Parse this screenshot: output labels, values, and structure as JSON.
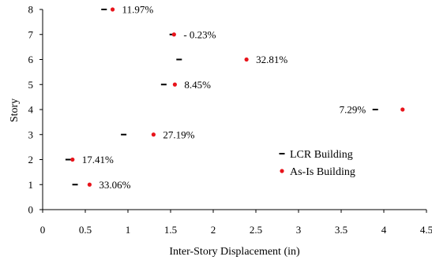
{
  "chart_data": {
    "type": "scatter",
    "title": "",
    "xlabel": "Inter-Story Displacement (in)",
    "ylabel": "Story",
    "xlim": [
      0,
      4.5
    ],
    "ylim": [
      0,
      8
    ],
    "x_ticks": [
      0,
      0.5,
      1,
      1.5,
      2,
      2.5,
      3,
      3.5,
      4,
      4.5
    ],
    "x_tick_labels": [
      "0",
      "0.5",
      "1",
      "1.5",
      "2",
      "2.5",
      "3",
      "3.5",
      "4",
      "4.5"
    ],
    "y_ticks": [
      0,
      1,
      2,
      3,
      4,
      5,
      6,
      7,
      8
    ],
    "y_tick_labels": [
      "0",
      "1",
      "2",
      "3",
      "4",
      "5",
      "6",
      "7",
      "8"
    ],
    "grid": false,
    "legend_position": "right-lower",
    "series": [
      {
        "name": "LCR Building",
        "marker": "dash",
        "color": "#000000",
        "points": [
          {
            "x": 0.38,
            "y": 1
          },
          {
            "x": 0.3,
            "y": 2
          },
          {
            "x": 0.95,
            "y": 3
          },
          {
            "x": 3.9,
            "y": 4
          },
          {
            "x": 1.42,
            "y": 5
          },
          {
            "x": 1.6,
            "y": 6
          },
          {
            "x": 1.52,
            "y": 7
          },
          {
            "x": 0.72,
            "y": 8
          }
        ]
      },
      {
        "name": "As-Is Building",
        "marker": "circle",
        "color": "#e8141b",
        "points": [
          {
            "x": 0.55,
            "y": 1
          },
          {
            "x": 0.35,
            "y": 2
          },
          {
            "x": 1.3,
            "y": 3
          },
          {
            "x": 4.22,
            "y": 4
          },
          {
            "x": 1.55,
            "y": 5
          },
          {
            "x": 2.39,
            "y": 6
          },
          {
            "x": 1.54,
            "y": 7
          },
          {
            "x": 0.82,
            "y": 8
          }
        ]
      }
    ],
    "annotations": [
      {
        "text": "33.06%",
        "x": 0.55,
        "y": 1,
        "side": "right"
      },
      {
        "text": "17.41%",
        "x": 0.35,
        "y": 2,
        "side": "right"
      },
      {
        "text": "27.19%",
        "x": 1.3,
        "y": 3,
        "side": "right"
      },
      {
        "text": "7.29%",
        "x": 3.9,
        "y": 4,
        "side": "left"
      },
      {
        "text": "8.45%",
        "x": 1.55,
        "y": 5,
        "side": "right"
      },
      {
        "text": "32.81%",
        "x": 2.39,
        "y": 6,
        "side": "right"
      },
      {
        "text": "- 0.23%",
        "x": 1.54,
        "y": 7,
        "side": "right"
      },
      {
        "text": "11.97%",
        "x": 0.82,
        "y": 8,
        "side": "right"
      }
    ]
  }
}
